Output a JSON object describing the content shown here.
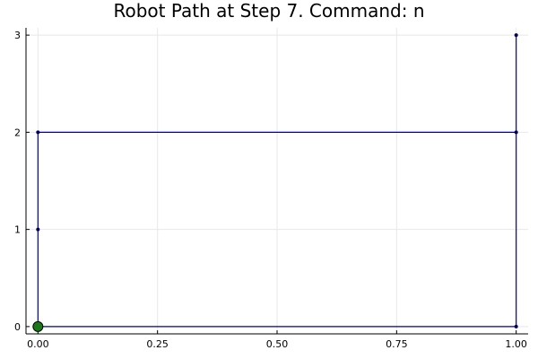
{
  "chart_data": {
    "type": "line",
    "title": "Robot Path at Step 7. Command: n",
    "xlabel": "",
    "ylabel": "",
    "xlim": [
      -0.025,
      1.025
    ],
    "ylim": [
      -0.075,
      3.075
    ],
    "x_ticks": [
      0.0,
      0.25,
      0.5,
      0.75,
      1.0
    ],
    "x_tick_labels": [
      "0.00",
      "0.25",
      "0.50",
      "0.75",
      "1.00"
    ],
    "y_ticks": [
      0,
      1,
      2,
      3
    ],
    "y_tick_labels": [
      "0",
      "1",
      "2",
      "3"
    ],
    "grid": true,
    "legend": "none",
    "series": [
      {
        "x": [
          0,
          1,
          1,
          1,
          0,
          0,
          0,
          0
        ],
        "y": [
          0,
          0,
          3,
          2,
          2,
          1,
          0,
          0
        ],
        "color": "#0000a0",
        "marker_color": "#00005a"
      }
    ],
    "current_position": {
      "x": 0,
      "y": 0,
      "color": "#1a7a1a"
    }
  }
}
